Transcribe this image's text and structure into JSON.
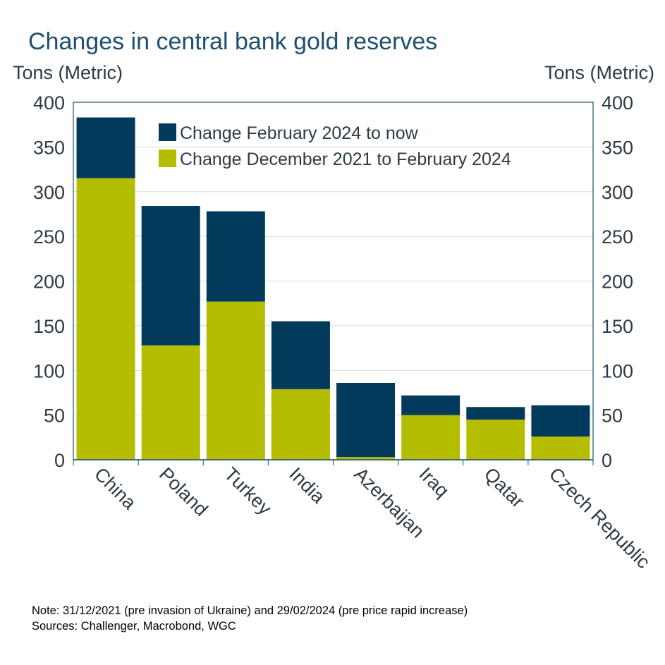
{
  "chart_data": {
    "type": "bar",
    "stacked": true,
    "title": "Changes in central bank gold reserves",
    "ylabel_left": "Tons (Metric)",
    "ylabel_right": "Tons (Metric)",
    "ylim": [
      0,
      400
    ],
    "yticks": [
      0,
      50,
      100,
      150,
      200,
      250,
      300,
      350,
      400
    ],
    "grid": true,
    "legend_position": "top-center",
    "categories": [
      "China",
      "Poland",
      "Turkey",
      "India",
      "Azerbaijan",
      "Iraq",
      "Qatar",
      "Czech Republic"
    ],
    "series": [
      {
        "name": "Change December 2021 to February 2024",
        "color": "#b5bd00",
        "values": [
          315,
          128,
          177,
          79,
          3,
          50,
          45,
          26
        ]
      },
      {
        "name": "Change February 2024 to now",
        "color": "#023a5c",
        "values": [
          68,
          156,
          101,
          76,
          83,
          22,
          14,
          35
        ]
      }
    ],
    "legend_order": [
      1,
      0
    ]
  },
  "footer": {
    "note": "Note: 31/12/2021 (pre invasion of Ukraine) and 29/02/2024 (pre price rapid increase)",
    "sources": "Sources: Challenger, Macrobond, WGC"
  }
}
